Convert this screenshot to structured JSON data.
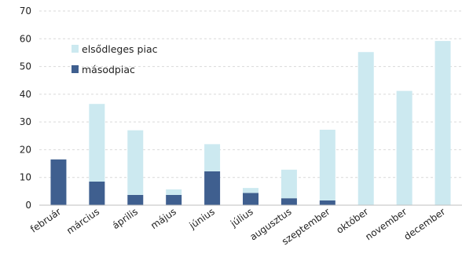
{
  "chart_data": {
    "type": "bar",
    "stacked": true,
    "title": "",
    "xlabel": "",
    "ylabel": "",
    "ylim": [
      0,
      70
    ],
    "yticks": [
      0,
      10,
      20,
      30,
      40,
      50,
      60,
      70
    ],
    "grid": true,
    "legend_position": "top-left",
    "categories": [
      "február",
      "március",
      "április",
      "május",
      "június",
      "július",
      "augusztus",
      "szeptember",
      "október",
      "november",
      "december"
    ],
    "series": [
      {
        "name": "másodpiac",
        "color": "#3f5f8f",
        "values": [
          16.5,
          8.5,
          3.7,
          3.7,
          12.2,
          4.4,
          2.5,
          1.7,
          0,
          0,
          0
        ]
      },
      {
        "name": "elsődleges piac",
        "color": "#cce9f0",
        "values": [
          0,
          28,
          23.3,
          2,
          9.8,
          1.8,
          10.3,
          25.5,
          55.2,
          41.2,
          59.2
        ]
      }
    ],
    "legend_order": [
      "elsődleges piac",
      "másodpiac"
    ]
  }
}
